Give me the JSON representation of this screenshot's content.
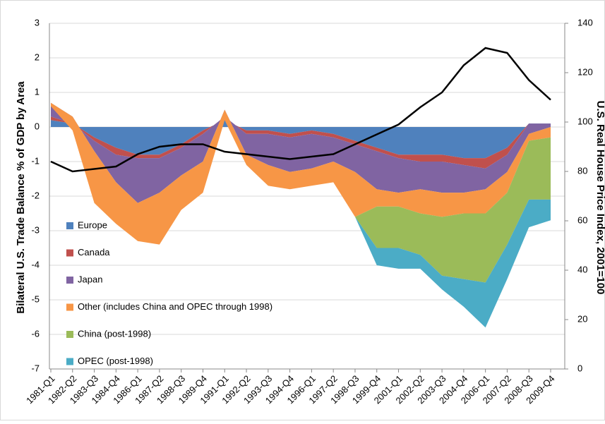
{
  "chart_data": {
    "type": "area",
    "stacked": true,
    "y_label": "Bilateral U.S. Trade Balance % of GDP by Area",
    "y2_label": "U.S. Real House Price Index, 2001=100",
    "categories": [
      "1981-Q1",
      "1982-Q2",
      "1983-Q3",
      "1984-Q4",
      "1986-Q1",
      "1987-Q2",
      "1988-Q3",
      "1989-Q4",
      "1991-Q1",
      "1992-Q2",
      "1993-Q3",
      "1994-Q4",
      "1996-Q1",
      "1997-Q2",
      "1998-Q3",
      "1999-Q4",
      "2001-Q1",
      "2002-Q2",
      "2003-Q3",
      "2004-Q4",
      "2006-Q1",
      "2007-Q2",
      "2008-Q3",
      "2009-Q4"
    ],
    "series": [
      {
        "name": "Europe",
        "color": "#4f81bd",
        "values": [
          0.2,
          0.1,
          -0.3,
          -0.6,
          -0.8,
          -0.8,
          -0.5,
          -0.1,
          0.2,
          -0.1,
          -0.1,
          -0.2,
          -0.1,
          -0.2,
          -0.4,
          -0.6,
          -0.8,
          -0.8,
          -0.8,
          -0.9,
          -0.9,
          -0.6,
          0.1,
          0.1
        ]
      },
      {
        "name": "Canada",
        "color": "#c0504d",
        "values": [
          0.1,
          0,
          -0.1,
          -0.2,
          -0.1,
          -0.1,
          -0.1,
          -0.1,
          0.1,
          -0.1,
          -0.1,
          -0.1,
          -0.1,
          -0.1,
          -0.1,
          -0.1,
          -0.1,
          -0.2,
          -0.2,
          -0.2,
          -0.3,
          -0.2,
          0,
          0
        ]
      },
      {
        "name": "Japan",
        "color": "#8064a2",
        "values": [
          0.4,
          0.2,
          -0.3,
          -0.8,
          -1.3,
          -1.0,
          -0.8,
          -0.8,
          0.2,
          -0.6,
          -0.9,
          -1.0,
          -1.0,
          -0.7,
          -0.8,
          -1.1,
          -1.0,
          -0.8,
          -0.9,
          -0.8,
          -0.6,
          -0.5,
          -0.3,
          -0.1
        ]
      },
      {
        "name": "Other (includes China and OPEC through 1998)",
        "color": "#f79646",
        "values": [
          -0.1,
          -0.4,
          -1.5,
          -1.2,
          -1.1,
          -1.5,
          -1.0,
          -0.9,
          -0.3,
          -0.3,
          -0.6,
          -0.5,
          -0.5,
          -0.6,
          -1.3,
          -0.5,
          -0.4,
          -0.7,
          -0.7,
          -0.6,
          -0.7,
          -0.6,
          -0.2,
          -0.3
        ]
      },
      {
        "name": "China  (post-1998)",
        "color": "#9bbb59",
        "values": [
          0,
          0,
          0,
          0,
          0,
          0,
          0,
          0,
          0,
          0,
          0,
          0,
          0,
          0,
          0,
          -1.2,
          -1.2,
          -1.2,
          -1.7,
          -1.9,
          -2.0,
          -1.5,
          -1.7,
          -1.8
        ]
      },
      {
        "name": "OPEC (post-1998)",
        "color": "#4bacc6",
        "values": [
          0,
          0,
          0,
          0,
          0,
          0,
          0,
          0,
          0,
          0,
          0,
          0,
          0,
          0,
          0,
          -0.5,
          -0.6,
          -0.4,
          -0.4,
          -0.8,
          -1.3,
          -1.0,
          -0.8,
          -0.6
        ]
      },
      {
        "type": "line",
        "axis": "y2",
        "color": "#000000",
        "values": [
          84,
          80,
          81,
          82,
          87,
          90,
          91,
          91,
          88,
          87,
          86,
          85,
          86,
          87,
          91,
          95,
          99,
          106,
          112,
          123,
          130,
          128,
          117,
          109
        ]
      }
    ],
    "ylim": [
      -7,
      3
    ],
    "yticks": [
      -7,
      -6,
      -5,
      -4,
      -3,
      -2,
      -1,
      0,
      1,
      2,
      3
    ],
    "y2lim": [
      0,
      140
    ],
    "y2ticks": [
      0,
      20,
      40,
      60,
      80,
      100,
      120,
      140
    ],
    "grid": true,
    "legend": "lower left"
  }
}
